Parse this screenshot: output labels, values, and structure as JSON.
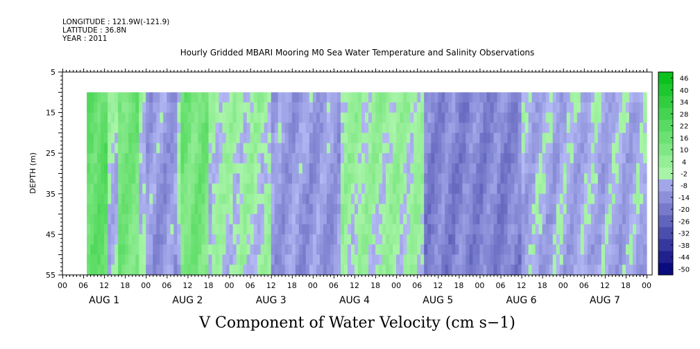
{
  "header": {
    "longitude": "LONGITUDE : 121.9W(-121.9)",
    "latitude": "LATITUDE : 36.8N",
    "year": "YEAR : 2011"
  },
  "chart_data": {
    "type": "heatmap",
    "title": "Hourly Gridded MBARI Mooring M0 Sea Water Temperature and Salinity Observations",
    "xlabel": "V Component of Water Velocity (cm s−1)",
    "ylabel": "DEPTH (m)",
    "ylim": [
      5,
      55
    ],
    "y_inverted": true,
    "y_ticks": [
      5,
      15,
      25,
      35,
      45,
      55
    ],
    "x_range_hours": [
      0,
      168
    ],
    "x_tick_labels": [
      "00",
      "06",
      "12",
      "18",
      "00",
      "06",
      "12",
      "18",
      "00",
      "06",
      "12",
      "18",
      "00",
      "06",
      "12",
      "18",
      "00",
      "06",
      "12",
      "18",
      "00",
      "06",
      "12",
      "18",
      "00",
      "06",
      "12",
      "18",
      "00"
    ],
    "x_day_labels": [
      "AUG 1",
      "AUG 2",
      "AUG 3",
      "AUG 4",
      "AUG 5",
      "AUG 6",
      "AUG 7"
    ],
    "data_extent": {
      "hour_start": 7,
      "hour_end": 168,
      "depth_top": 10,
      "depth_bottom": 55
    },
    "colorbar": {
      "levels": [
        46,
        40,
        34,
        28,
        22,
        16,
        10,
        4,
        -2,
        -8,
        -14,
        -20,
        -26,
        -32,
        -38,
        -44,
        -50
      ],
      "labels": [
        "46",
        "40",
        "34",
        "28",
        "22",
        "16",
        "10",
        "4",
        "-2",
        "-8",
        "-14",
        "-20",
        "-26",
        "-32",
        "-38",
        "-44",
        "-50"
      ]
    },
    "dominant_structure": [
      {
        "hours": [
          7,
          13
        ],
        "sign": "positive",
        "approx_value": 22
      },
      {
        "hours": [
          16,
          22
        ],
        "sign": "positive",
        "approx_value": 16
      },
      {
        "hours": [
          24,
          33
        ],
        "sign": "negative",
        "approx_value": -8
      },
      {
        "hours": [
          34,
          42
        ],
        "sign": "positive",
        "approx_value": 16
      },
      {
        "hours": [
          43,
          60
        ],
        "sign": "mixed",
        "approx_value": 2
      },
      {
        "hours": [
          60,
          80
        ],
        "sign": "negative",
        "approx_value": -8
      },
      {
        "hours": [
          80,
          104
        ],
        "sign": "mixed",
        "approx_value": 4
      },
      {
        "hours": [
          104,
          132
        ],
        "sign": "negative",
        "approx_value": -14
      },
      {
        "hours": [
          132,
          168
        ],
        "sign": "mixed",
        "approx_value": -4
      }
    ]
  }
}
